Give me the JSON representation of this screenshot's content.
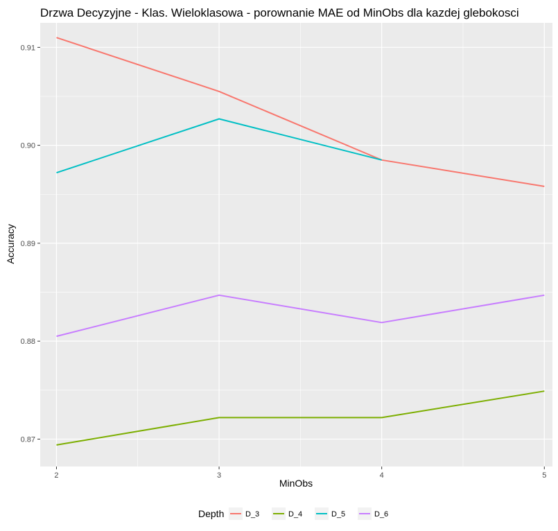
{
  "chart_data": {
    "type": "line",
    "title": "Drzwa Decyzyjne - Klas. Wieloklasowa - porownanie MAE od MinObs dla kazdej glebokosci",
    "xlabel": "MinObs",
    "ylabel": "Accuracy",
    "x": [
      2,
      3,
      4,
      5
    ],
    "xlim": [
      1.9,
      5.05
    ],
    "ylim": [
      0.8672,
      0.9125
    ],
    "x_ticks": [
      "2",
      "3",
      "4",
      "5"
    ],
    "y_ticks": [
      "0.87",
      "0.88",
      "0.89",
      "0.90",
      "0.91"
    ],
    "y_tick_values": [
      0.87,
      0.88,
      0.89,
      0.9,
      0.91
    ],
    "grid": true,
    "legend_position": "bottom",
    "legend_title": "Depth",
    "series": [
      {
        "name": "D_3",
        "color": "#F8766D",
        "values": [
          0.911,
          0.9055,
          0.8985,
          0.8958
        ]
      },
      {
        "name": "D_4",
        "color": "#7CAE00",
        "values": [
          0.8694,
          0.8722,
          0.8722,
          0.8749
        ]
      },
      {
        "name": "D_5",
        "color": "#00BFC4",
        "values": [
          0.8972,
          0.9027,
          0.8985,
          null
        ]
      },
      {
        "name": "D_6",
        "color": "#C77CFF",
        "values": [
          0.8805,
          0.8847,
          0.8819,
          0.8847
        ]
      }
    ]
  }
}
